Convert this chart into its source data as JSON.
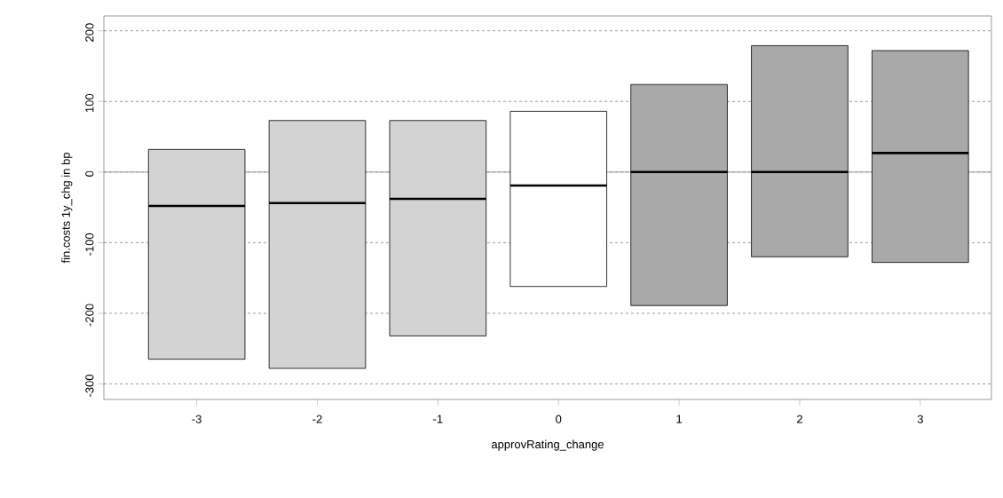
{
  "chart_data": {
    "type": "box",
    "xlabel": "approvRating_change",
    "ylabel": "fin.costs 1y_chg in bp",
    "categories": [
      "-3",
      "-2",
      "-1",
      "0",
      "1",
      "2",
      "3"
    ],
    "boxes": [
      {
        "low": -265,
        "q1": -265,
        "median": -48,
        "q3": 32,
        "high": 32
      },
      {
        "low": -278,
        "q1": -278,
        "median": -44,
        "q3": 73,
        "high": 73
      },
      {
        "low": -232,
        "q1": -232,
        "median": -38,
        "q3": 73,
        "high": 73
      },
      {
        "low": -162,
        "q1": -162,
        "median": -19,
        "q3": 86,
        "high": 86
      },
      {
        "low": -189,
        "q1": -189,
        "median": 0,
        "q3": 124,
        "high": 124
      },
      {
        "low": -120,
        "q1": -120,
        "median": 0,
        "q3": 179,
        "high": 179
      },
      {
        "low": -128,
        "q1": -128,
        "median": 27,
        "q3": 172,
        "high": 172
      }
    ],
    "colors": [
      "#d3d3d3",
      "#d3d3d3",
      "#d3d3d3",
      "#ffffff",
      "#a9a9a9",
      "#a9a9a9",
      "#a9a9a9"
    ],
    "ylim": [
      -322,
      221
    ],
    "yticks": [
      -300,
      -200,
      -100,
      0,
      100,
      200
    ],
    "grid": "y",
    "ref_lines": [
      {
        "axis": "y",
        "value": 0,
        "color": "#999999",
        "line_style": "solid"
      }
    ]
  }
}
